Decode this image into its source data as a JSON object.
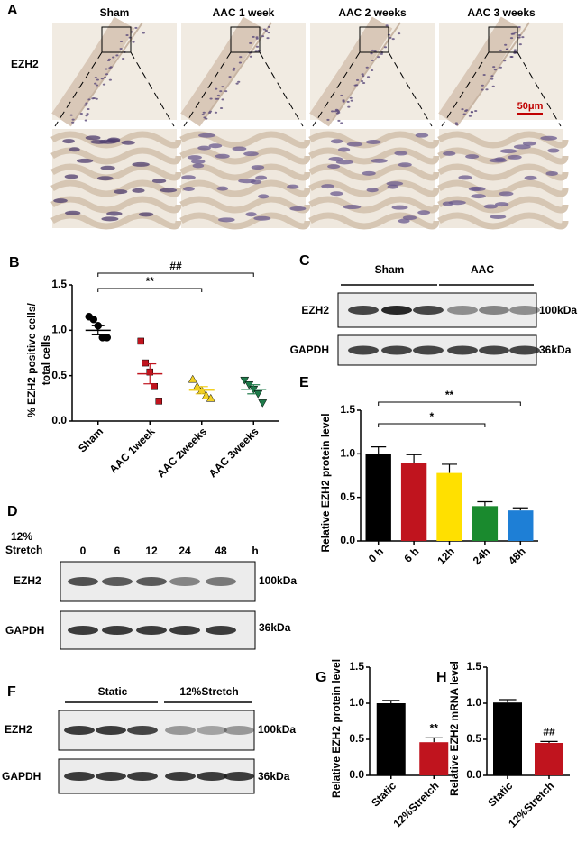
{
  "panel_labels": [
    "A",
    "B",
    "C",
    "D",
    "E",
    "F",
    "G",
    "H"
  ],
  "panel_a": {
    "columns": [
      "Sham",
      "AAC 1 week",
      "AAC 2 weeks",
      "AAC 3 weeks"
    ],
    "row_label": "EZH2",
    "scale_bar": "50μm"
  },
  "panel_c": {
    "groups": [
      "Sham",
      "AAC"
    ],
    "rows": [
      "EZH2",
      "GAPDH"
    ],
    "sizes": [
      "100kDa",
      "36kDa"
    ]
  },
  "panel_d": {
    "treatment": [
      "12%",
      "Stretch"
    ],
    "timepoints": [
      "0",
      "6",
      "12",
      "24",
      "48"
    ],
    "unit": "h",
    "rows": [
      "EZH2",
      "GAPDH"
    ],
    "sizes": [
      "100kDa",
      "36kDa"
    ]
  },
  "panel_f": {
    "groups": [
      "Static",
      "12%Stretch"
    ],
    "rows": [
      "EZH2",
      "GAPDH"
    ],
    "sizes": [
      "100kDa",
      "36kDa"
    ]
  },
  "chart_data": [
    {
      "type": "strip",
      "ylabel": [
        "% EZH2 positive cells/",
        "total cells"
      ],
      "categories": [
        "Sham",
        "AAC 1week",
        "AAC 2weeks",
        "AAC 3weeks"
      ],
      "points": [
        [
          1.15,
          1.12,
          1.05,
          0.92,
          0.92
        ],
        [
          0.88,
          0.64,
          0.54,
          0.38,
          0.22
        ],
        [
          0.46,
          0.38,
          0.34,
          0.28,
          0.25
        ],
        [
          0.45,
          0.4,
          0.35,
          0.3,
          0.2
        ]
      ],
      "means": [
        1.0,
        0.52,
        0.34,
        0.35
      ],
      "errors": [
        0.05,
        0.11,
        0.04,
        0.05
      ],
      "colors": [
        "#000000",
        "#c0141e",
        "#f2d024",
        "#1f7a4a"
      ],
      "markers": [
        "circle",
        "square",
        "triangle-up",
        "triangle-down"
      ],
      "ylim": [
        0,
        1.5
      ],
      "yticks": [
        {
          "value": 0,
          "label": "0.0"
        },
        0.5,
        {
          "value": 1,
          "label": "1.0"
        },
        1.5
      ],
      "annotations": [
        {
          "text": "**",
          "from": 0,
          "to": 2
        },
        {
          "text": "##",
          "from": 0,
          "to": 3
        }
      ]
    },
    {
      "type": "bar",
      "ylabel": [
        "Relative  EZH2 protein  level"
      ],
      "categories": [
        "0 h",
        "6 h",
        "12h",
        "24h",
        "48h"
      ],
      "values": [
        1.0,
        0.9,
        0.78,
        0.4,
        0.35
      ],
      "errors": [
        0.08,
        0.09,
        0.1,
        0.05,
        0.03
      ],
      "colors": [
        "#000000",
        "#c0141e",
        "#ffe000",
        "#1a8a2e",
        "#1e7fd6"
      ],
      "ylim": [
        0,
        1.5
      ],
      "yticks": [
        {
          "value": 0,
          "label": "0.0"
        },
        0.5,
        {
          "value": 1,
          "label": "1.0"
        },
        1.5
      ],
      "annotations": [
        {
          "text": "*",
          "from": 0,
          "to": 3
        },
        {
          "text": "**",
          "from": 0,
          "to": 4
        }
      ]
    },
    {
      "type": "bar",
      "ylabel": [
        "Relative EZH2 protein level"
      ],
      "categories": [
        "Static",
        "12%Stretch"
      ],
      "values": [
        1.0,
        0.46
      ],
      "errors": [
        0.04,
        0.06
      ],
      "colors": [
        "#000000",
        "#c0141e"
      ],
      "ylim": [
        0,
        1.5
      ],
      "yticks": [
        {
          "value": 0,
          "label": "0.0"
        },
        0.5,
        {
          "value": 1,
          "label": "1.0"
        },
        1.5
      ],
      "annotations": [
        {
          "text": "**",
          "at": 1
        }
      ]
    },
    {
      "type": "bar",
      "ylabel": [
        "Relative EZH2 mRNA level"
      ],
      "categories": [
        "Static",
        "12%Stretch"
      ],
      "values": [
        1.01,
        0.45
      ],
      "errors": [
        0.04,
        0.02
      ],
      "colors": [
        "#000000",
        "#c0141e"
      ],
      "ylim": [
        0,
        1.5
      ],
      "yticks": [
        {
          "value": 0,
          "label": "0.0"
        },
        0.5,
        {
          "value": 1,
          "label": "1.0"
        },
        1.5
      ],
      "annotations": [
        {
          "text": "##",
          "at": 1
        }
      ]
    }
  ]
}
